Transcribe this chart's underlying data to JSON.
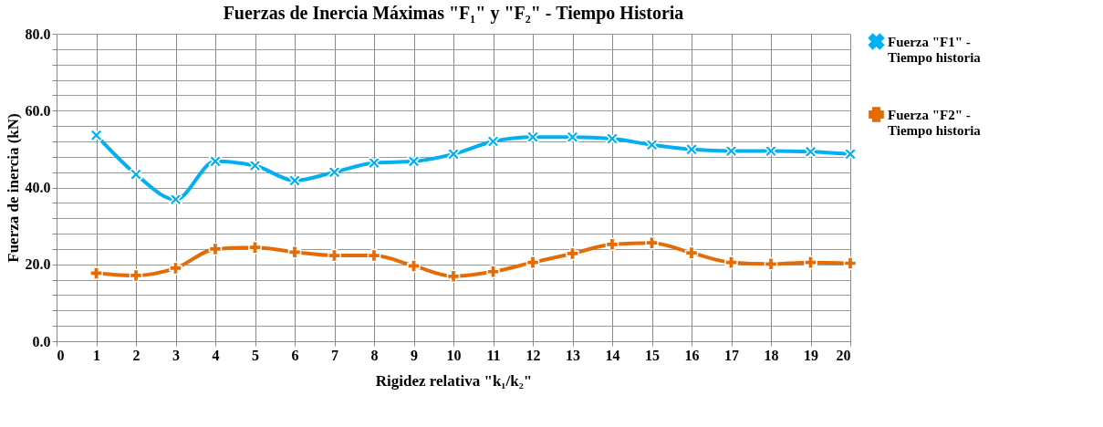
{
  "chart_data": {
    "type": "line",
    "title": "Fuerzas de Inercia Máximas \"F₁\" y \"F₂\" - Tiempo Historia",
    "xlabel": "Rigidez relativa \"k₁/k₂\"",
    "ylabel": "Fuerza de inercia (kN)",
    "x": [
      1,
      2,
      3,
      4,
      5,
      6,
      7,
      8,
      9,
      10,
      11,
      12,
      13,
      14,
      15,
      16,
      17,
      18,
      19,
      20
    ],
    "series": [
      {
        "name": "Fuerza \"F1\" - Tiempo historia",
        "color": "#00b0f0",
        "values": [
          53.6,
          43.4,
          36.9,
          46.8,
          45.7,
          41.8,
          44.0,
          46.4,
          46.8,
          48.7,
          52.0,
          53.1,
          53.1,
          52.7,
          51.1,
          49.9,
          49.5,
          49.5,
          49.3,
          48.7
        ]
      },
      {
        "name": "Fuerza \"F2\" - Tiempo historia",
        "color": "#e36c09",
        "values": [
          17.7,
          17.1,
          19.0,
          24.0,
          24.4,
          23.2,
          22.3,
          22.3,
          19.6,
          16.9,
          18.1,
          20.5,
          22.8,
          25.2,
          25.6,
          23.0,
          20.5,
          20.1,
          20.5,
          20.3
        ]
      }
    ],
    "xlim": [
      0,
      20
    ],
    "xticks": [
      0,
      1,
      2,
      3,
      4,
      5,
      6,
      7,
      8,
      9,
      10,
      11,
      12,
      13,
      14,
      15,
      16,
      17,
      18,
      19,
      20
    ],
    "ylim": [
      0,
      80
    ],
    "yticks": [
      {
        "value": 0,
        "label": "0.0"
      },
      {
        "value": 4,
        "label": null
      },
      {
        "value": 8,
        "label": null
      },
      {
        "value": 12,
        "label": null
      },
      {
        "value": 16,
        "label": null
      },
      {
        "value": 20,
        "label": "20.0"
      },
      {
        "value": 24,
        "label": null
      },
      {
        "value": 28,
        "label": null
      },
      {
        "value": 32,
        "label": null
      },
      {
        "value": 36,
        "label": null
      },
      {
        "value": 40,
        "label": "40.0"
      },
      {
        "value": 44,
        "label": null
      },
      {
        "value": 48,
        "label": null
      },
      {
        "value": 52,
        "label": null
      },
      {
        "value": 56,
        "label": null
      },
      {
        "value": 60,
        "label": "60.0"
      },
      {
        "value": 64,
        "label": null
      },
      {
        "value": 68,
        "label": null
      },
      {
        "value": 72,
        "label": null
      },
      {
        "value": 76,
        "label": null
      },
      {
        "value": 80,
        "label": "80.0"
      }
    ],
    "grid": true,
    "legend": "right",
    "marker": "cross",
    "line_style": "solid"
  }
}
